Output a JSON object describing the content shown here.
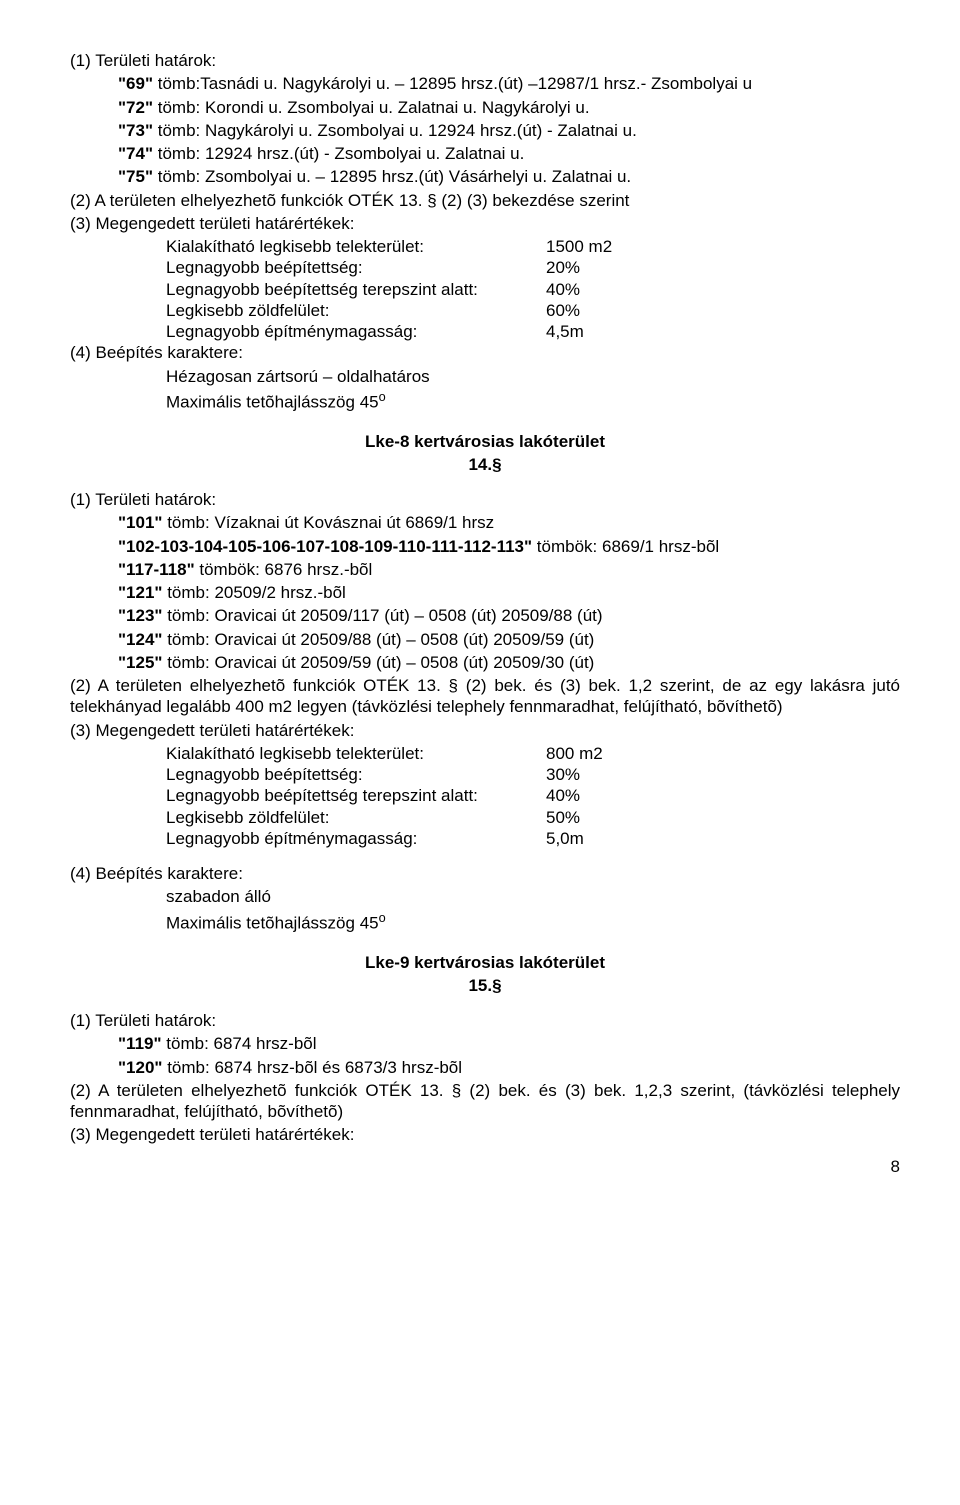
{
  "p1_head": "(1) Területi határok:",
  "p1_l1a": "\"69\"",
  "p1_l1b": " tömb:Tasnádi u.  Nagykárolyi u. – 12895 hrsz.(út) –12987/1 hrsz.- Zsombolyai u",
  "p1_l2a": "\"72\"",
  "p1_l2b": " tömb: Korondi u. Zsombolyai u. Zalatnai u. Nagykárolyi u.",
  "p1_l3a": "\"73\"",
  "p1_l3b": " tömb: Nagykárolyi u. Zsombolyai u. 12924 hrsz.(út) - Zalatnai u.",
  "p1_l4a": "\"74\"",
  "p1_l4b": " tömb: 12924 hrsz.(út) - Zsombolyai u. Zalatnai u.",
  "p1_l5a": "\"75\"",
  "p1_l5b": " tömb: Zsombolyai u. – 12895 hrsz.(út) Vásárhelyi u. Zalatnai u.",
  "p2": "(2) A területen elhelyezhetõ funkciók OTÉK 13. § (2) (3) bekezdése szerint",
  "p3": "(3) Megengedett területi határértékek:",
  "r1l": "Kialakítható legkisebb telekterület:",
  "r1v": "1500 m2",
  "r2l": "Legnagyobb beépítettség:",
  "r2v": "20%",
  "r3l": "Legnagyobb beépítettség terepszint alatt:",
  "r3v": "40%",
  "r4l": "Legkisebb zöldfelület:",
  "r4v": "60%",
  "r5l": "Legnagyobb építménymagasság:",
  "r5v": "4,5m",
  "p4": "(4) Beépítés karaktere:",
  "p4a": "Hézagosan zártsorú – oldalhatáros",
  "p4b_pre": "Maximális tetõhajlásszög 45",
  "p4b_sup": "o",
  "sec8_title": "Lke-8 kertvárosias lakóterület",
  "sec8_num": "14.§",
  "s8_head": "(1) Területi határok:",
  "s8_l1a": "\"101\"",
  "s8_l1b": " tömb: Vízaknai út Kovásznai út 6869/1 hrsz",
  "s8_l2a": "\"102-103-104-105-106-107-108-109-110-111-112-113\"",
  "s8_l2b": " tömbök: 6869/1 hrsz-bõl",
  "s8_l3a": "\"117-118\"",
  "s8_l3b": " tömbök: 6876 hrsz.-bõl",
  "s8_l4a": "\"121\"",
  "s8_l4b": " tömb: 20509/2 hrsz.-bõl",
  "s8_l5a": "\"123\"",
  "s8_l5b": " tömb: Oravicai út 20509/117 (út) – 0508 (út) 20509/88 (út)",
  "s8_l6a": "\"124\"",
  "s8_l6b": " tömb: Oravicai út 20509/88 (út) – 0508 (út) 20509/59 (út)",
  "s8_l7a": "\"125\"",
  "s8_l7b": " tömb: Oravicai út 20509/59 (út) – 0508 (út) 20509/30 (út)",
  "s8_p2": "(2) A területen elhelyezhetõ funkciók OTÉK 13. § (2) bek. és (3) bek. 1,2 szerint, de az egy lakásra jutó telekhányad legalább 400 m2 legyen (távközlési telephely fennmaradhat, felújítható, bõvíthetõ)",
  "s8_p3": "(3) Megengedett területi határértékek:",
  "s8r1l": "Kialakítható legkisebb telekterület:",
  "s8r1v": "800 m2",
  "s8r2l": "Legnagyobb beépítettség:",
  "s8r2v": "30%",
  "s8r3l": "Legnagyobb beépítettség terepszint alatt:",
  "s8r3v": "40%",
  "s8r4l": "Legkisebb zöldfelület:",
  "s8r4v": "50%",
  "s8r5l": "Legnagyobb építménymagasság:",
  "s8r5v": "5,0m",
  "s8_p4": "(4) Beépítés karaktere:",
  "s8_p4a": "szabadon álló",
  "s8_p4b_pre": "Maximális tetõhajlásszög 45",
  "s8_p4b_sup": "o",
  "sec9_title": "Lke-9 kertvárosias lakóterület",
  "sec9_num": "15.§",
  "s9_head": "(1) Területi határok:",
  "s9_l1a": "\"119\"",
  "s9_l1b": " tömb: 6874 hrsz-bõl",
  "s9_l2a": "\"120\"",
  "s9_l2b": " tömb: 6874 hrsz-bõl és 6873/3 hrsz-bõl",
  "s9_p2": "(2) A területen elhelyezhetõ funkciók OTÉK 13. § (2) bek. és (3) bek. 1,2,3 szerint, (távközlési telephely fennmaradhat, felújítható, bõvíthetõ)",
  "s9_p3": "(3) Megengedett területi határértékek:",
  "page": "8"
}
